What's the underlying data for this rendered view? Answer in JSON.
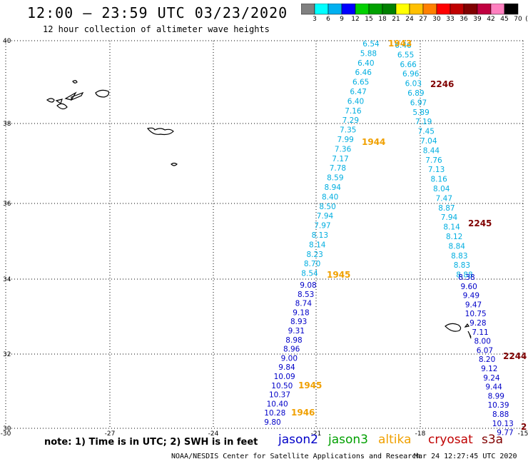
{
  "header": {
    "title": "12:00 – 23:59 UTC 03/23/2020",
    "subtitle": "12 hour collection of altimeter wave heights"
  },
  "colorbar": {
    "colors": [
      "#808080",
      "#00ffff",
      "#00b0f0",
      "#0000ff",
      "#00d000",
      "#00a000",
      "#008000",
      "#ffff00",
      "#ffc000",
      "#ff8000",
      "#ff0000",
      "#c00000",
      "#800000",
      "#c00040",
      "#ff80c0",
      "#000000"
    ],
    "labels": [
      "3",
      "6",
      "9",
      "12",
      "15",
      "18",
      "21",
      "24",
      "27",
      "30",
      "33",
      "36",
      "39",
      "42",
      "45",
      "70",
      "(ft)"
    ]
  },
  "axes": {
    "lat_labels": [
      "40",
      "38",
      "36",
      "34",
      "32",
      "30"
    ],
    "lon_labels": [
      "-30",
      "-27",
      "-24",
      "-21",
      "-18",
      "-15"
    ]
  },
  "track_colors": {
    "cyan": "#00aee0",
    "blue": "#0000c8",
    "orange": "#f0a000",
    "darkred": "#800000"
  },
  "track_left_upper": {
    "values": [
      "6.54",
      "5.88",
      "6.40",
      "6.46",
      "6.65",
      "6.47",
      "6.40",
      "7.16",
      "7.29",
      "7.35",
      "7.99",
      "7.36",
      "7.17",
      "7.78",
      "8.59",
      "8.94",
      "8.40",
      "8.50",
      "7.94",
      "7.97",
      "8.13",
      "8.14",
      "8.23",
      "8.70",
      "8.54"
    ]
  },
  "track_left_lower": {
    "values": [
      "9.08",
      "8.53",
      "8.74",
      "9.18",
      "8.93",
      "9.31",
      "8.98",
      "8.96",
      "9.00",
      "9.84",
      "10.09",
      "10.50",
      "10.37",
      "10.40",
      "10.28",
      "9.80"
    ]
  },
  "track_right_upper": {
    "values": [
      "6.46",
      "6.55",
      "6.66",
      "6.96",
      "6.03",
      "6.89",
      "6.97",
      "5.89",
      "7.19",
      "7.45",
      "7.04",
      "8.44",
      "7.76",
      "7.13",
      "8.16",
      "8.04",
      "7.47",
      "8.87",
      "7.94",
      "8.14",
      "8.12",
      "8.84",
      "8.83",
      "8.83",
      "8.88"
    ]
  },
  "track_right_lower": {
    "values": [
      "8.38",
      "9.60",
      "9.49",
      "9.47",
      "10.75",
      "9.28",
      "7.11",
      "8.00",
      "6.07",
      "8.20",
      "9.12",
      "9.24",
      "9.44",
      "8.99",
      "10.39",
      "8.88",
      "10.13",
      "9.77"
    ]
  },
  "time_labels": [
    "1943",
    "1944",
    "1945",
    "1945",
    "1946",
    "2246",
    "2245",
    "2244",
    "2"
  ],
  "note": "note: 1) Time is in UTC; 2) SWH is in feet",
  "satellites": [
    {
      "name": "jason2",
      "color": "#0000c8"
    },
    {
      "name": "jason3",
      "color": "#00a000"
    },
    {
      "name": "altika",
      "color": "#f0a000"
    },
    {
      "name": "cryosat",
      "color": "#c00000"
    },
    {
      "name": "s3a",
      "color": "#800000"
    }
  ],
  "footer": {
    "source": "NOAA/NESDIS Center for Satellite Applications and Research",
    "timestamp": "Mar 24 12:27:45 UTC 2020"
  }
}
